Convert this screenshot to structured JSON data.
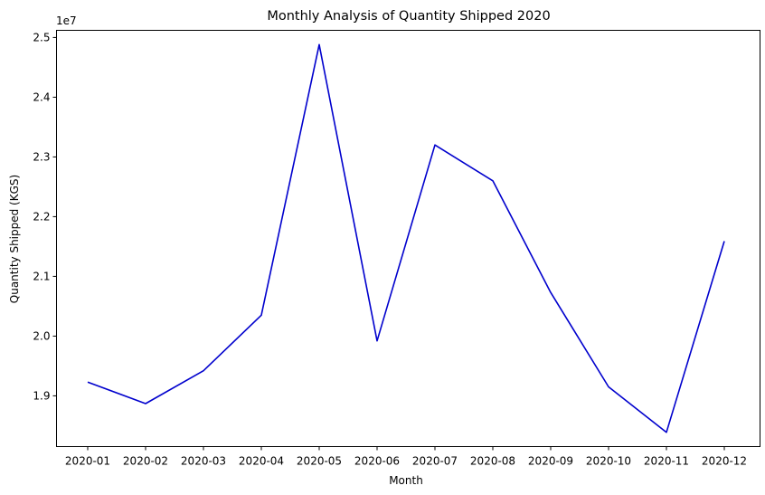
{
  "chart_data": {
    "type": "line",
    "title": "Monthly Analysis of Quantity Shipped 2020",
    "xlabel": "Month",
    "ylabel": "Quantity Shipped (KGS)",
    "y_offset_label": "1e7",
    "categories": [
      "2020-01",
      "2020-02",
      "2020-03",
      "2020-04",
      "2020-05",
      "2020-06",
      "2020-07",
      "2020-08",
      "2020-09",
      "2020-10",
      "2020-11",
      "2020-12"
    ],
    "series": [
      {
        "values": [
          19230000,
          18870000,
          19420000,
          20350000,
          24880000,
          19920000,
          23200000,
          22600000,
          20730000,
          19150000,
          18390000,
          21590000
        ],
        "color": "#0000cd"
      }
    ],
    "yticks": [
      19000000,
      20000000,
      21000000,
      22000000,
      23000000,
      24000000,
      25000000
    ],
    "ytick_labels": [
      "1.9",
      "2.0",
      "2.1",
      "2.2",
      "2.3",
      "2.4",
      "2.5"
    ],
    "ylim": [
      18150000,
      25120000
    ],
    "grid": false,
    "legend": false
  }
}
